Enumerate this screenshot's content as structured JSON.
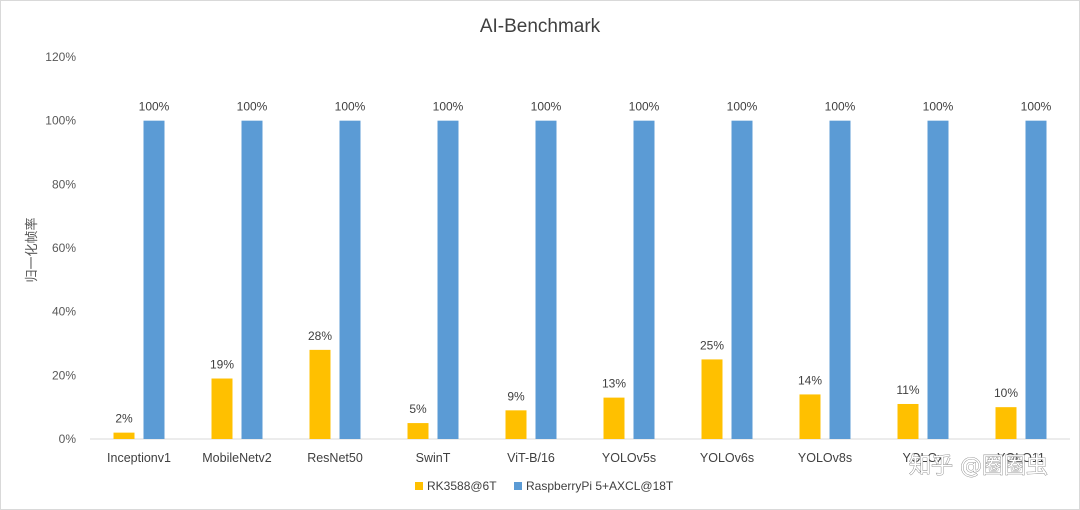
{
  "chart_data": {
    "type": "bar",
    "title": "AI-Benchmark",
    "xlabel": "",
    "ylabel": "归一化帧率",
    "ylim": [
      0,
      120
    ],
    "yticks": [
      "0%",
      "20%",
      "40%",
      "60%",
      "80%",
      "100%",
      "120%"
    ],
    "categories": [
      "Inceptionv1",
      "MobileNetv2",
      "ResNet50",
      "SwinT",
      "ViT-B/16",
      "YOLOv5s",
      "YOLOv6s",
      "YOLOv8s",
      "YOLOx",
      "YOLO11"
    ],
    "series": [
      {
        "name": "RK3588@6T",
        "color": "#FFC000",
        "values": [
          2,
          19,
          28,
          5,
          9,
          13,
          25,
          14,
          11,
          10
        ],
        "labels": [
          "2%",
          "19%",
          "28%",
          "5%",
          "9%",
          "13%",
          "25%",
          "14%",
          "11%",
          "10%"
        ]
      },
      {
        "name": "RaspberryPi 5+AXCL@18T",
        "color": "#5B9BD5",
        "values": [
          100,
          100,
          100,
          100,
          100,
          100,
          100,
          100,
          100,
          100
        ],
        "labels": [
          "100%",
          "100%",
          "100%",
          "100%",
          "100%",
          "100%",
          "100%",
          "100%",
          "100%",
          "100%"
        ]
      }
    ],
    "grid": false,
    "legend_position": "bottom"
  },
  "watermark": "知乎 @圈圈虫"
}
